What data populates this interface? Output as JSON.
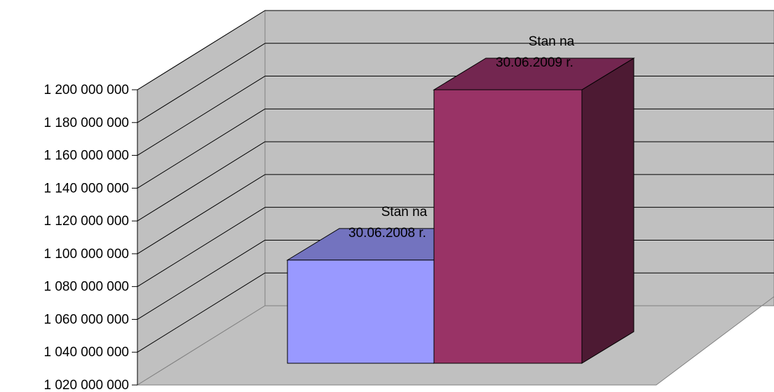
{
  "chart_data": {
    "type": "bar",
    "style": "3d-column",
    "categories": [
      "Stan na 30.06.2008 r.",
      "Stan na 30.06.2009 r."
    ],
    "values": [
      1096000000,
      1200000000
    ],
    "data_labels": [
      [
        "Stan na",
        "30.06.2008 r."
      ],
      [
        "Stan na",
        "30.06.2009 r."
      ]
    ],
    "ylim": [
      1020000000,
      1200000000
    ],
    "y_ticks": [
      1020000000,
      1040000000,
      1060000000,
      1080000000,
      1100000000,
      1120000000,
      1140000000,
      1160000000,
      1180000000,
      1200000000
    ],
    "y_tick_labels": [
      "1 020 000 000",
      "1 040 000 000",
      "1 060 000 000",
      "1 080 000 000",
      "1 100 000 000",
      "1 120 000 000",
      "1 140 000 000",
      "1 160 000 000",
      "1 180 000 000",
      "1 200 000 000"
    ],
    "grid": true,
    "legend": "none",
    "colors": {
      "wall": "#c0c0c0",
      "floor": "#c0c0c0",
      "bar1_front": "#9999ff",
      "bar1_top": "#7373bf",
      "bar1_side": "#4d4d80",
      "bar2_front": "#993366",
      "bar2_top": "#732650",
      "bar2_side": "#4d1a33"
    }
  }
}
